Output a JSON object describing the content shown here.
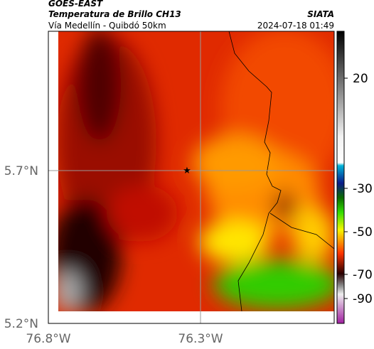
{
  "header": {
    "source": "GOES-EAST",
    "title": "Temperatura de Brillo CH13",
    "organization": "SIATA",
    "subtitle": "Vía Medellín - Quibdó 50km",
    "timestamp": "2024-07-18 01:49"
  },
  "map": {
    "lat_labels": [
      "5.7°N",
      "5.2°N"
    ],
    "lon_labels": [
      "76.8°W",
      "76.3°W"
    ]
  },
  "colorbar": {
    "labels": [
      "20",
      "-30",
      "-50",
      "-70",
      "-90"
    ]
  }
}
